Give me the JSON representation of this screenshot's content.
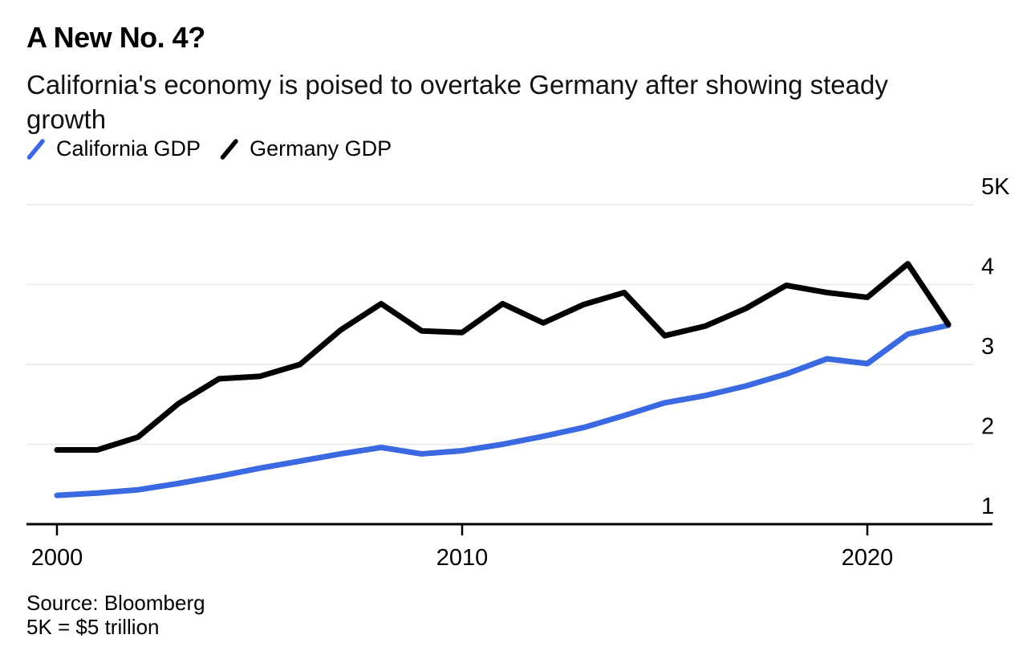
{
  "header": {
    "title": "A New No. 4?",
    "subtitle": "California's economy is poised to overtake Germany after showing steady growth"
  },
  "legend": [
    {
      "label": "California GDP",
      "color": "#3A69E1"
    },
    {
      "label": "Germany GDP",
      "color": "#000000"
    }
  ],
  "source": {
    "line1": "Source: Bloomberg",
    "line2": "5K = $5 trillion"
  },
  "colors": {
    "california_line": "#3A69E1",
    "germany_line": "#000000",
    "gridline": "#ECECEC",
    "axis": "#000000",
    "background": "#FFFFFF"
  },
  "chart_data": {
    "type": "line",
    "title": "A New No. 4?",
    "subtitle": "California's economy is poised to overtake Germany after showing steady growth",
    "units_note": "5K = $5 trillion",
    "source_note": "Source: Bloomberg",
    "xlabel": "",
    "ylabel": "",
    "grid": "horizontal",
    "legend_position": "top-left",
    "xlim": [
      1999.25,
      2023.1
    ],
    "ylim": [
      1,
      5
    ],
    "x_ticks": [
      2000,
      2010,
      2020
    ],
    "y_ticks": [
      {
        "value": 5,
        "label": "5K"
      },
      {
        "value": 4,
        "label": "4"
      },
      {
        "value": 3,
        "label": "3"
      },
      {
        "value": 2,
        "label": "2"
      },
      {
        "value": 1,
        "label": "1"
      }
    ],
    "x": [
      2000,
      2001,
      2002,
      2003,
      2004,
      2005,
      2006,
      2007,
      2008,
      2009,
      2010,
      2011,
      2012,
      2013,
      2014,
      2015,
      2016,
      2017,
      2018,
      2019,
      2020,
      2021,
      2022
    ],
    "series": [
      {
        "name": "California GDP",
        "color": "#3A69E1",
        "values": [
          1.36,
          1.39,
          1.43,
          1.51,
          1.6,
          1.7,
          1.79,
          1.88,
          1.96,
          1.88,
          1.92,
          2.0,
          2.1,
          2.21,
          2.36,
          2.52,
          2.61,
          2.73,
          2.88,
          3.07,
          3.01,
          3.38,
          3.49
        ]
      },
      {
        "name": "Germany GDP",
        "color": "#000000",
        "values": [
          1.93,
          1.93,
          2.09,
          2.51,
          2.82,
          2.85,
          3.0,
          3.43,
          3.76,
          3.42,
          3.4,
          3.76,
          3.52,
          3.75,
          3.9,
          3.36,
          3.48,
          3.7,
          3.99,
          3.9,
          3.84,
          4.26,
          3.5
        ]
      }
    ]
  }
}
